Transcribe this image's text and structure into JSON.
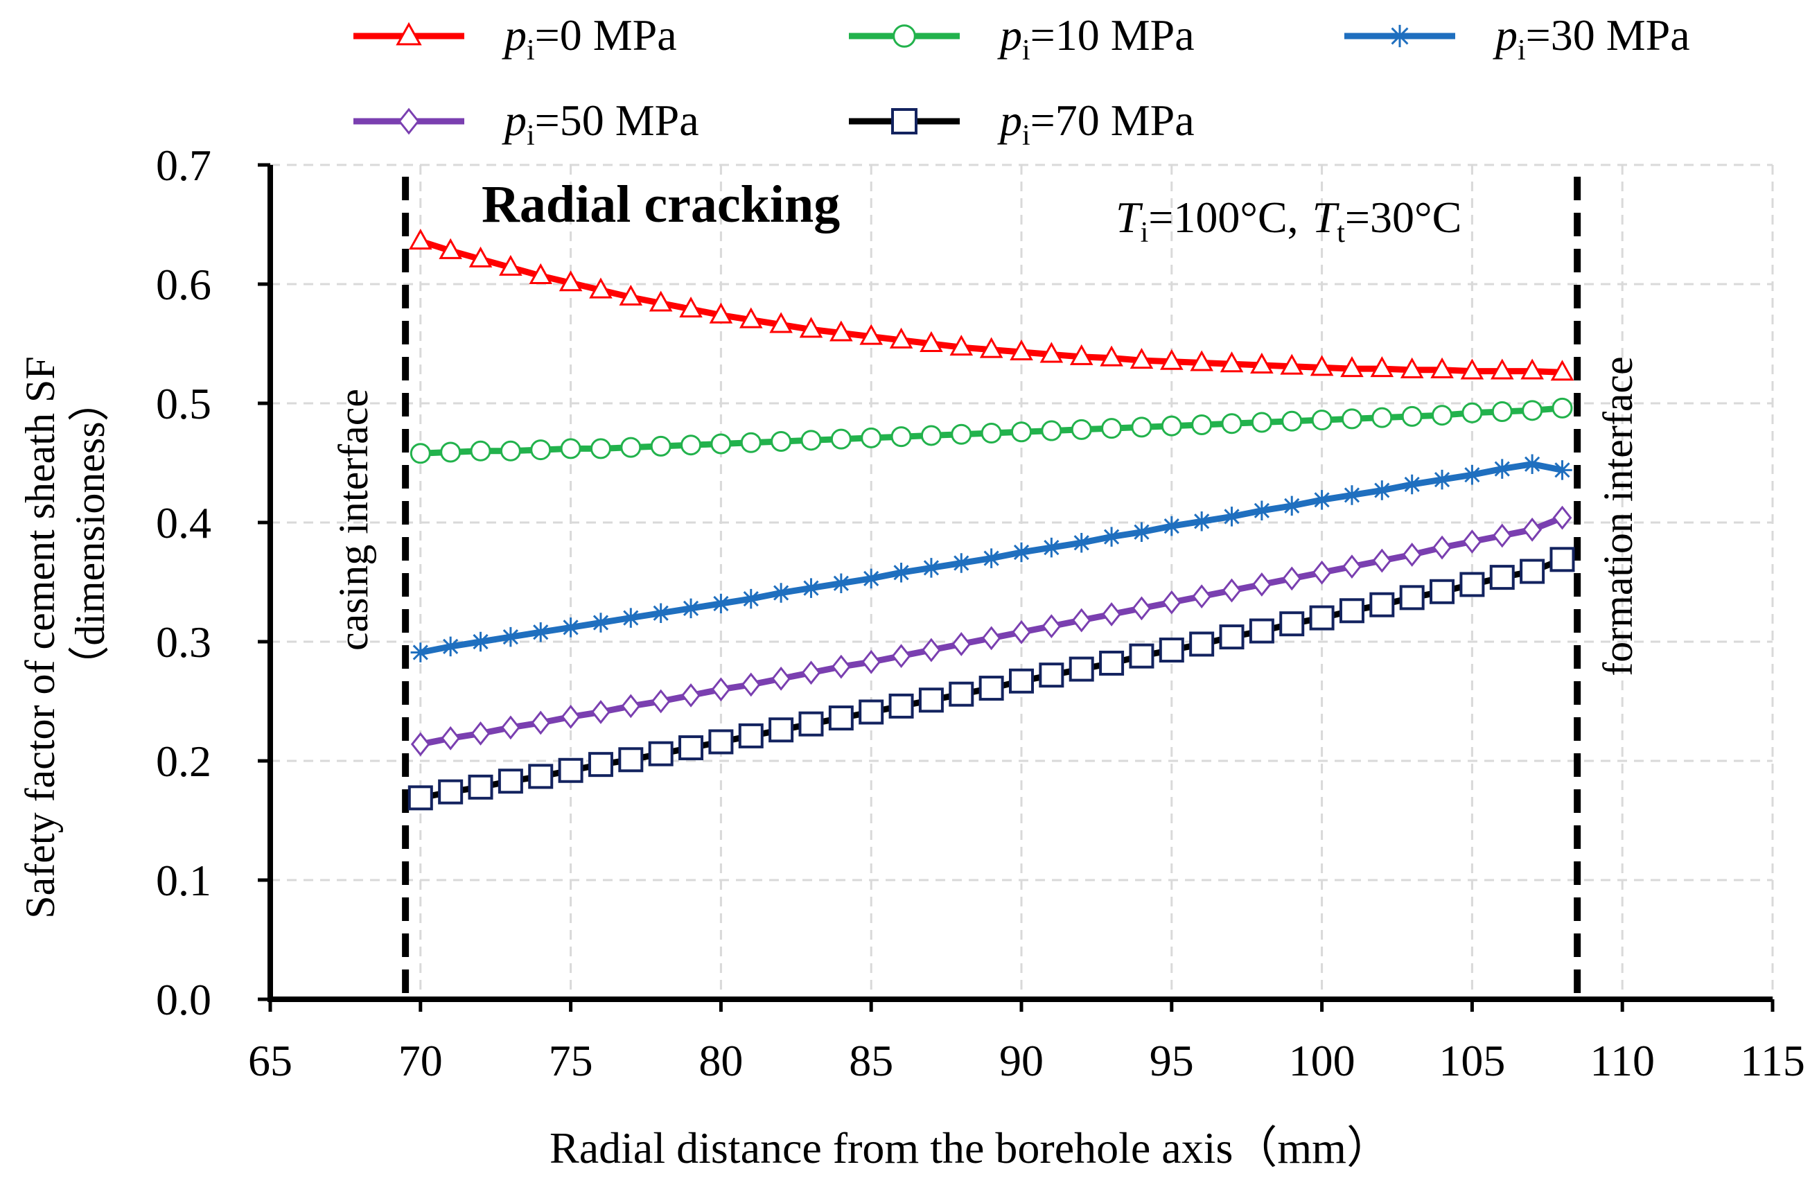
{
  "chart_data": {
    "type": "line",
    "xlabel": "Radial distance from  the borehole axis（mm）",
    "ylabel_line1": "Safety factor of cement sheath SF",
    "ylabel_line2": "（dimensioness）",
    "xlim": [
      65,
      115
    ],
    "ylim": [
      0.0,
      0.7
    ],
    "x_ticks": [
      65,
      70,
      75,
      80,
      85,
      90,
      95,
      100,
      105,
      110,
      115
    ],
    "y_ticks": [
      0.0,
      0.1,
      0.2,
      0.3,
      0.4,
      0.5,
      0.6,
      0.7
    ],
    "y_tick_labels": [
      "0.0",
      "0.1",
      "0.2",
      "0.3",
      "0.4",
      "0.5",
      "0.6",
      "0.7"
    ],
    "grid": true,
    "x_start": 70,
    "x_end": 108,
    "x_step": 1,
    "annotations": {
      "title": "Radial cracking",
      "temperature": {
        "T_sym": "T",
        "i_sub": "i",
        "i_val": "=100°C,",
        "t_sub": "t",
        "t_val": "=30°C"
      },
      "left_boundary": {
        "x": 69.5,
        "label": "casing  interface"
      },
      "right_boundary": {
        "x": 108.5,
        "label": "formation  interface"
      }
    },
    "series": [
      {
        "name": "pi=0 MPa",
        "p_sym": "p",
        "sub": "i",
        "rest": "=0 MPa",
        "color": "#ff0000",
        "marker": "triangle",
        "values": [
          0.636,
          0.628,
          0.621,
          0.614,
          0.607,
          0.601,
          0.595,
          0.589,
          0.584,
          0.579,
          0.574,
          0.57,
          0.566,
          0.562,
          0.559,
          0.556,
          0.553,
          0.55,
          0.547,
          0.545,
          0.543,
          0.541,
          0.539,
          0.538,
          0.536,
          0.535,
          0.534,
          0.533,
          0.532,
          0.531,
          0.53,
          0.529,
          0.529,
          0.528,
          0.528,
          0.527,
          0.527,
          0.527,
          0.526
        ]
      },
      {
        "name": "pi=10 MPa",
        "p_sym": "p",
        "sub": "i",
        "rest": "=10 MPa",
        "color": "#22b24c",
        "marker": "circle",
        "values": [
          0.458,
          0.459,
          0.46,
          0.46,
          0.461,
          0.462,
          0.462,
          0.463,
          0.464,
          0.465,
          0.466,
          0.467,
          0.468,
          0.469,
          0.47,
          0.471,
          0.472,
          0.473,
          0.474,
          0.475,
          0.476,
          0.477,
          0.478,
          0.479,
          0.48,
          0.481,
          0.482,
          0.483,
          0.484,
          0.485,
          0.486,
          0.487,
          0.488,
          0.489,
          0.49,
          0.492,
          0.493,
          0.494,
          0.496
        ]
      },
      {
        "name": "pi=30 MPa",
        "p_sym": "p",
        "sub": "i",
        "rest": "=30 MPa",
        "color": "#1f6fbf",
        "marker": "star",
        "values": [
          0.291,
          0.296,
          0.3,
          0.304,
          0.308,
          0.312,
          0.316,
          0.32,
          0.324,
          0.328,
          0.332,
          0.336,
          0.341,
          0.345,
          0.349,
          0.353,
          0.358,
          0.362,
          0.366,
          0.37,
          0.375,
          0.379,
          0.383,
          0.388,
          0.392,
          0.397,
          0.401,
          0.405,
          0.41,
          0.414,
          0.419,
          0.423,
          0.427,
          0.432,
          0.436,
          0.44,
          0.445,
          0.449,
          0.444
        ]
      },
      {
        "name": "pi=50 MPa",
        "p_sym": "p",
        "sub": "i",
        "rest": "=50 MPa",
        "color": "#7a3fb0",
        "marker": "diamond",
        "values": [
          0.214,
          0.219,
          0.223,
          0.228,
          0.232,
          0.237,
          0.241,
          0.246,
          0.25,
          0.255,
          0.26,
          0.264,
          0.269,
          0.274,
          0.279,
          0.283,
          0.288,
          0.293,
          0.298,
          0.303,
          0.308,
          0.313,
          0.318,
          0.323,
          0.328,
          0.333,
          0.338,
          0.343,
          0.348,
          0.353,
          0.358,
          0.363,
          0.368,
          0.373,
          0.379,
          0.384,
          0.389,
          0.394,
          0.404
        ]
      },
      {
        "name": "pi=70 MPa",
        "p_sym": "p",
        "sub": "i",
        "rest": "=70 MPa",
        "color": "#000000",
        "marker": "square",
        "marker_color": "#13235f",
        "values": [
          0.169,
          0.174,
          0.178,
          0.183,
          0.187,
          0.192,
          0.197,
          0.201,
          0.206,
          0.211,
          0.216,
          0.221,
          0.226,
          0.231,
          0.236,
          0.241,
          0.246,
          0.251,
          0.256,
          0.261,
          0.267,
          0.272,
          0.277,
          0.282,
          0.288,
          0.293,
          0.298,
          0.304,
          0.309,
          0.315,
          0.32,
          0.326,
          0.331,
          0.337,
          0.342,
          0.348,
          0.354,
          0.359,
          0.369
        ]
      }
    ]
  }
}
